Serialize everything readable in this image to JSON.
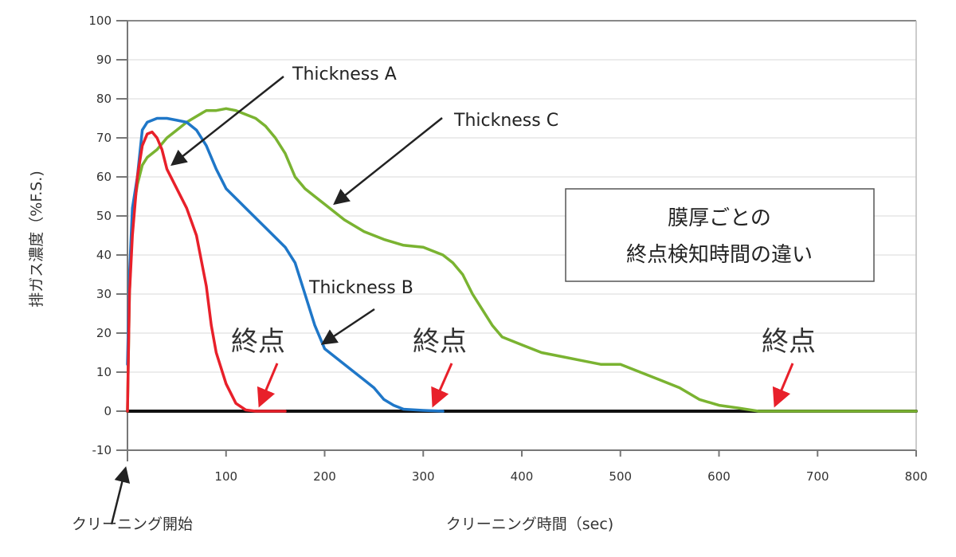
{
  "chart_data": {
    "type": "line",
    "title": "",
    "xlabel": "クリーニング時間（sec)",
    "ylabel": "排ガス濃度（%F.S.)",
    "xlim": [
      0,
      800
    ],
    "ylim": [
      -10,
      100
    ],
    "xticks": [
      100,
      200,
      300,
      400,
      500,
      600,
      700,
      800
    ],
    "yticks": [
      100,
      90,
      80,
      70,
      60,
      50,
      40,
      30,
      20,
      10,
      0,
      -10
    ],
    "grid": true,
    "series": [
      {
        "name": "Thickness A",
        "color": "#e8202a",
        "x": [
          0,
          2,
          5,
          10,
          15,
          20,
          25,
          30,
          35,
          40,
          50,
          60,
          70,
          80,
          85,
          90,
          100,
          110,
          120,
          130,
          160
        ],
        "y": [
          0,
          30,
          45,
          60,
          68,
          71,
          71.5,
          70,
          67,
          62,
          57,
          52,
          45,
          32,
          22,
          15,
          7,
          2,
          0.3,
          0,
          0
        ]
      },
      {
        "name": "Thickness B",
        "color": "#1f77c8",
        "x": [
          0,
          2,
          5,
          10,
          15,
          20,
          30,
          40,
          50,
          60,
          70,
          80,
          90,
          100,
          120,
          140,
          160,
          170,
          180,
          190,
          200,
          220,
          240,
          250,
          260,
          270,
          280,
          300,
          320
        ],
        "y": [
          12,
          35,
          52,
          60,
          72,
          74,
          75,
          75,
          74.5,
          74,
          72,
          68,
          62,
          57,
          52,
          47,
          42,
          38,
          30,
          22,
          16,
          12,
          8,
          6,
          3,
          1.5,
          0.5,
          0.2,
          0
        ]
      },
      {
        "name": "Thickness C",
        "color": "#7ab331",
        "x": [
          0,
          2,
          5,
          10,
          15,
          20,
          30,
          40,
          50,
          60,
          70,
          80,
          90,
          100,
          110,
          120,
          130,
          140,
          150,
          160,
          170,
          180,
          190,
          200,
          220,
          240,
          260,
          280,
          300,
          320,
          330,
          340,
          350,
          370,
          380,
          400,
          420,
          440,
          460,
          480,
          500,
          520,
          540,
          560,
          580,
          600,
          620,
          640,
          800
        ],
        "y": [
          0,
          30,
          50,
          58,
          63,
          65,
          67,
          70,
          72,
          74,
          75.5,
          77,
          77,
          77.5,
          77,
          76,
          75,
          73,
          70,
          66,
          60,
          57,
          55,
          53,
          49,
          46,
          44,
          42.5,
          42,
          40,
          38,
          35,
          30,
          22,
          19,
          17,
          15,
          14,
          13,
          12,
          12,
          10,
          8,
          6,
          3,
          1.5,
          0.8,
          0,
          0
        ]
      },
      {
        "name": "baseline",
        "color": "#111111",
        "x": [
          0,
          800
        ],
        "y": [
          0,
          0
        ]
      }
    ],
    "annotations": {
      "thickness_a": "Thickness A",
      "thickness_b": "Thickness B",
      "thickness_c": "Thickness C",
      "endpoint": "終点",
      "endpoint_x": [
        130,
        310,
        655
      ],
      "box_line1": "膜厚ごとの",
      "box_line2": "終点検知時間の違い",
      "start_label": "クリーニング開始"
    }
  }
}
